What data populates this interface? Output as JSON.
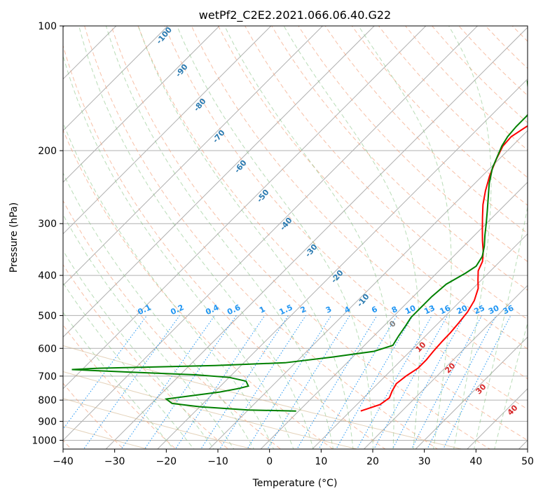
{
  "chart_data": {
    "type": "skew-t",
    "title": "wetPf2_C2E2.2021.066.06.40.G22",
    "xlabel": "Temperature (°C)",
    "ylabel": "Pressure (hPa)",
    "xlim": [
      -40,
      50
    ],
    "ylim": [
      1050,
      100
    ],
    "x_ticks": [
      "−40",
      "−30",
      "−20",
      "−10",
      "0",
      "10",
      "20",
      "30",
      "40",
      "50"
    ],
    "y_ticks": [
      {
        "p": 100,
        "label": "100"
      },
      {
        "p": 200,
        "label": "200"
      },
      {
        "p": 300,
        "label": "300"
      },
      {
        "p": 400,
        "label": "400"
      },
      {
        "p": 500,
        "label": "500"
      },
      {
        "p": 600,
        "label": "600"
      },
      {
        "p": 700,
        "label": "700"
      },
      {
        "p": 800,
        "label": "800"
      },
      {
        "p": 900,
        "label": "900"
      },
      {
        "p": 1000,
        "label": "1000"
      }
    ],
    "temperature": {
      "name": "Temperature",
      "color": "#ff0000",
      "points": [
        [
          850,
          12
        ],
        [
          820,
          14.5
        ],
        [
          790,
          15
        ],
        [
          760,
          14.2
        ],
        [
          730,
          13.6
        ],
        [
          700,
          14
        ],
        [
          670,
          14.8
        ],
        [
          640,
          14.8
        ],
        [
          610,
          14.5
        ],
        [
          580,
          14.3
        ],
        [
          550,
          14.2
        ],
        [
          520,
          13.9
        ],
        [
          490,
          13.5
        ],
        [
          460,
          12.6
        ],
        [
          430,
          11
        ],
        [
          410,
          9.3
        ],
        [
          390,
          7.6
        ],
        [
          370,
          6.6
        ],
        [
          350,
          4.8
        ],
        [
          330,
          2.6
        ],
        [
          310,
          0.4
        ],
        [
          290,
          -1.9
        ],
        [
          270,
          -4.3
        ],
        [
          250,
          -6.5
        ],
        [
          230,
          -8.6
        ],
        [
          210,
          -10.5
        ],
        [
          195,
          -11.8
        ],
        [
          185,
          -12
        ],
        [
          175,
          -11
        ],
        [
          165,
          -9
        ],
        [
          158,
          -6
        ],
        [
          152,
          -3
        ],
        [
          146,
          0
        ],
        [
          140,
          5
        ],
        [
          135,
          10
        ],
        [
          130,
          12.6
        ],
        [
          124,
          14
        ],
        [
          118,
          16.5
        ],
        [
          112,
          18.8
        ],
        [
          106,
          19.6
        ],
        [
          100,
          19.2
        ]
      ]
    },
    "dewpoint": {
      "name": "Dewpoint",
      "color": "#008000",
      "points": [
        [
          850,
          -0.5
        ],
        [
          845,
          -10
        ],
        [
          830,
          -20
        ],
        [
          815,
          -26
        ],
        [
          800,
          -27.5
        ],
        [
          795,
          -28
        ],
        [
          785,
          -25
        ],
        [
          765,
          -19
        ],
        [
          750,
          -16
        ],
        [
          740,
          -14.6
        ],
        [
          720,
          -16
        ],
        [
          705,
          -20
        ],
        [
          695,
          -27
        ],
        [
          685,
          -40
        ],
        [
          675,
          -52
        ],
        [
          670,
          -47
        ],
        [
          660,
          -25
        ],
        [
          650,
          -12
        ],
        [
          630,
          -4
        ],
        [
          610,
          3
        ],
        [
          590,
          5.5
        ],
        [
          560,
          4.8
        ],
        [
          530,
          4.2
        ],
        [
          505,
          3.6
        ],
        [
          480,
          3.6
        ],
        [
          450,
          3.6
        ],
        [
          420,
          4
        ],
        [
          395,
          5.6
        ],
        [
          380,
          6.3
        ],
        [
          360,
          5.6
        ],
        [
          340,
          4
        ],
        [
          320,
          2
        ],
        [
          300,
          0
        ],
        [
          280,
          -2.2
        ],
        [
          260,
          -4.6
        ],
        [
          240,
          -7.2
        ],
        [
          220,
          -9.6
        ],
        [
          205,
          -11
        ],
        [
          195,
          -12
        ],
        [
          185,
          -12.7
        ],
        [
          175,
          -13
        ],
        [
          165,
          -13
        ],
        [
          157,
          -13.4
        ],
        [
          150,
          -14.6
        ],
        [
          145,
          -16.5
        ],
        [
          140,
          -18.5
        ],
        [
          136,
          -19.6
        ],
        [
          130,
          -19
        ],
        [
          124,
          -18
        ],
        [
          118,
          -18.6
        ],
        [
          113,
          -20
        ],
        [
          109,
          -21
        ],
        [
          106,
          -20
        ],
        [
          103,
          -16
        ],
        [
          100,
          -14
        ]
      ]
    },
    "mixing_ratio_labels": [
      "0.1",
      "0.2",
      "0.4",
      "0.6",
      "1",
      "1.5",
      "2",
      "3",
      "4",
      "6",
      "8",
      "10",
      "13",
      "16",
      "20",
      "25",
      "30",
      "36"
    ],
    "dry_adiabat_labels": [
      "-100",
      "-90",
      "-80",
      "-70",
      "-60",
      "-50",
      "-40",
      "-30",
      "-20",
      "-10"
    ],
    "moist_adiabat_labels": [
      "0",
      "10",
      "20",
      "30",
      "40"
    ]
  }
}
